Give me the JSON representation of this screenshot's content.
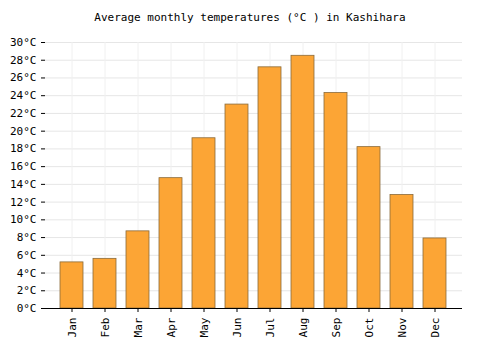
{
  "chart_data": {
    "type": "bar",
    "title": "Average monthly temperatures (°C ) in Kashihara",
    "categories": [
      "Jan",
      "Feb",
      "Mar",
      "Apr",
      "May",
      "Jun",
      "Jul",
      "Aug",
      "Sep",
      "Oct",
      "Nov",
      "Dec"
    ],
    "values": [
      5.2,
      5.6,
      8.7,
      14.7,
      19.2,
      23.0,
      27.2,
      28.5,
      24.3,
      18.2,
      12.8,
      7.9
    ],
    "color": "#fca535",
    "ylim": [
      0,
      30
    ],
    "yticks": [
      {
        "value": 0,
        "label": "0°C"
      },
      {
        "value": 2,
        "label": "2°C"
      },
      {
        "value": 4,
        "label": "4°C"
      },
      {
        "value": 6,
        "label": "6°C"
      },
      {
        "value": 8,
        "label": "8°C"
      },
      {
        "value": 10,
        "label": "10°C"
      },
      {
        "value": 12,
        "label": "12°C"
      },
      {
        "value": 14,
        "label": "14°C"
      },
      {
        "value": 16,
        "label": "16°C"
      },
      {
        "value": 18,
        "label": "18°C"
      },
      {
        "value": 20,
        "label": "20°C"
      },
      {
        "value": 22,
        "label": "22°C"
      },
      {
        "value": 24,
        "label": "24°C"
      },
      {
        "value": 26,
        "label": "26°C"
      },
      {
        "value": 28,
        "label": "28°C"
      },
      {
        "value": 30,
        "label": "30°C"
      }
    ],
    "grid": true
  }
}
